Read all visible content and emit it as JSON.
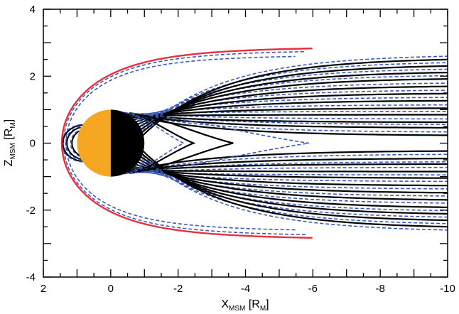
{
  "chart_data": {
    "type": "line",
    "xlabel": {
      "main": "X",
      "sub": "MSM",
      "unit_open": " [R",
      "unit_sub": "M",
      "unit_close": "]"
    },
    "ylabel": {
      "main": "Z",
      "sub": "MSM",
      "unit_open": " [R",
      "unit_sub": "M",
      "unit_close": "]"
    },
    "xlim": [
      2,
      -10
    ],
    "ylim": [
      -4,
      4
    ],
    "x_ticks": [
      "2",
      "0",
      "-2",
      "-4",
      "-6",
      "-8",
      "-10"
    ],
    "y_ticks": [
      "4",
      "2",
      "0",
      "-2",
      "-4"
    ],
    "x_tick_values": [
      2,
      0,
      -2,
      -4,
      -6,
      -8,
      -10
    ],
    "y_tick_values": [
      4,
      2,
      0,
      -2,
      -4
    ],
    "planet": {
      "radius": 1.0,
      "dayside_color": "#f5a623",
      "nightside_color": "#000000"
    },
    "magnetopause": {
      "standoff": 1.45,
      "flaring": 0.5,
      "tail_half_width": 2.95,
      "color": "#e8303a"
    },
    "closed_loop_tips": [
      -2.5,
      -3.7
    ],
    "model_loop_tip": -6.0,
    "colors": {
      "solid_field_lines": "#000000",
      "dashed_field_lines": "#3a5bb5",
      "axes": "#000000"
    }
  }
}
